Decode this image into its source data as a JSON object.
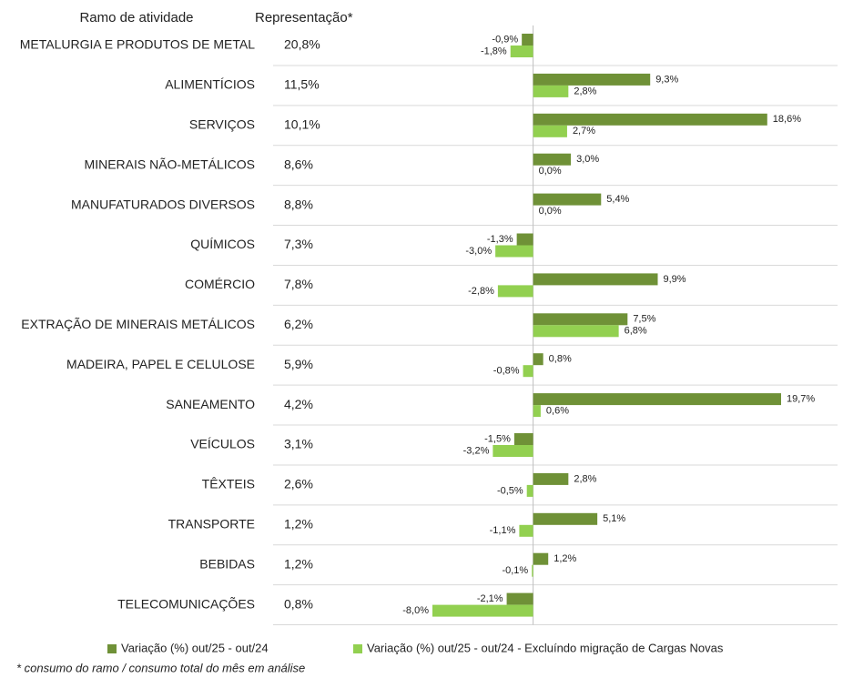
{
  "chart_data": {
    "type": "bar",
    "orientation": "horizontal",
    "category_header": "Ramo de atividade",
    "share_header": "Representação*",
    "categories": [
      "METALURGIA E PRODUTOS DE METAL",
      "ALIMENTÍCIOS",
      "SERVIÇOS",
      "MINERAIS NÃO-METÁLICOS",
      "MANUFATURADOS DIVERSOS",
      "QUÍMICOS",
      "COMÉRCIO",
      "EXTRAÇÃO DE MINERAIS METÁLICOS",
      "MADEIRA, PAPEL E CELULOSE",
      "SANEAMENTO",
      "VEÍCULOS",
      "TÊXTEIS",
      "TRANSPORTE",
      "BEBIDAS",
      "TELECOMUNICAÇÕES"
    ],
    "shares": [
      "20,8%",
      "11,5%",
      "10,1%",
      "8,6%",
      "8,8%",
      "7,3%",
      "7,8%",
      "6,2%",
      "5,9%",
      "4,2%",
      "3,1%",
      "2,6%",
      "1,2%",
      "1,2%",
      "0,8%"
    ],
    "series": [
      {
        "name": "Variação (%) out/25 - out/24",
        "color": "#6f9137",
        "values": [
          -0.9,
          9.3,
          18.6,
          3.0,
          5.4,
          -1.3,
          9.9,
          7.5,
          0.8,
          19.7,
          -1.5,
          2.8,
          5.1,
          1.2,
          -2.1
        ],
        "value_labels": [
          "-0,9%",
          "9,3%",
          "18,6%",
          "3,0%",
          "5,4%",
          "-1,3%",
          "9,9%",
          "7,5%",
          "0,8%",
          "19,7%",
          "-1,5%",
          "2,8%",
          "5,1%",
          "1,2%",
          "-2,1%"
        ]
      },
      {
        "name": "Variação (%) out/25 - out/24 - Excluíndo migração de Cargas Novas",
        "color": "#92d050",
        "values": [
          -1.8,
          2.8,
          2.7,
          0.0,
          0.0,
          -3.0,
          -2.8,
          6.8,
          -0.8,
          0.6,
          -3.2,
          -0.5,
          -1.1,
          -0.1,
          -8.0
        ],
        "value_labels": [
          "-1,8%",
          "2,8%",
          "2,7%",
          "0,0%",
          "0,0%",
          "-3,0%",
          "-2,8%",
          "6,8%",
          "-0,8%",
          "0,6%",
          "-3,2%",
          "-0,5%",
          "-1,1%",
          "-0,1%",
          "-8,0%"
        ]
      }
    ],
    "footnote": "* consumo do ramo / consumo total do mês em análise"
  }
}
